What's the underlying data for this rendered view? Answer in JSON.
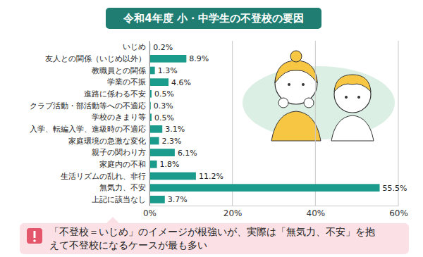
{
  "chart_data": {
    "type": "bar",
    "orientation": "horizontal",
    "title": "令和4年度 小・中学生の不登校の要因",
    "categories": [
      "いじめ",
      "友人との関係（いじめ以外）",
      "教職員との関係",
      "学業の不振",
      "進路に係わる不安",
      "クラブ活動・部活動等への不適応",
      "学校のきまり等",
      "入学、転編入学、進級時の不適応",
      "家庭環境の急激な変化",
      "親子の関わり方",
      "家庭内の不和",
      "生活リズムの乱れ、非行",
      "無気力、不安",
      "上記に該当なし"
    ],
    "values": [
      0.2,
      8.9,
      1.3,
      4.6,
      0.5,
      0.3,
      0.5,
      3.1,
      2.3,
      6.1,
      1.8,
      11.2,
      55.5,
      3.7
    ],
    "value_labels": [
      "0.2%",
      "8.9%",
      "1.3%",
      "4.6%",
      "0.5%",
      "0.3%",
      "0.5%",
      "3.1%",
      "2.3%",
      "6.1%",
      "1.8%",
      "11.2%",
      "55.5%",
      "3.7%"
    ],
    "color": "#1a9b8c",
    "xlim": [
      0,
      60
    ],
    "xticks": [
      {
        "value": 0,
        "label": "0%"
      },
      {
        "value": 20,
        "label": "20%"
      },
      {
        "value": 40,
        "label": "40%"
      },
      {
        "value": 60,
        "label": "60%"
      }
    ],
    "grid": true,
    "data_labels": true,
    "annotation": "「不登校＝いじめ」のイメージが根強いが、実際は「無気力、不安」を抱えて不登校になるケースが最も多い"
  }
}
